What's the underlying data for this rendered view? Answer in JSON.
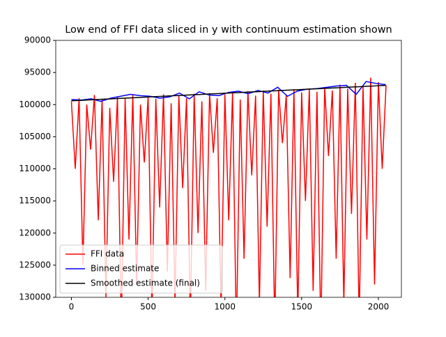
{
  "chart_data": {
    "type": "line",
    "title": "Low end of FFI data sliced in y with continuum estimation shown",
    "xlim": [
      -102,
      2150
    ],
    "xticks": [
      0,
      500,
      1000,
      1500,
      2000
    ],
    "ylim": [
      130000,
      90000
    ],
    "yticks": [
      90000,
      95000,
      100000,
      105000,
      110000,
      115000,
      120000,
      125000,
      130000
    ],
    "legend": "lower left",
    "series": [
      {
        "name": "FFI data",
        "color": "#ff0000",
        "x": [
          0,
          25,
          50,
          75,
          100,
          125,
          150,
          175,
          200,
          225,
          250,
          275,
          300,
          325,
          350,
          375,
          400,
          425,
          450,
          475,
          500,
          525,
          550,
          575,
          600,
          625,
          650,
          675,
          700,
          725,
          750,
          775,
          800,
          825,
          850,
          875,
          900,
          925,
          950,
          975,
          1000,
          1025,
          1050,
          1075,
          1100,
          1125,
          1150,
          1175,
          1200,
          1225,
          1250,
          1275,
          1300,
          1325,
          1350,
          1375,
          1400,
          1425,
          1450,
          1475,
          1500,
          1525,
          1550,
          1575,
          1600,
          1625,
          1650,
          1675,
          1700,
          1725,
          1750,
          1775,
          1800,
          1825,
          1850,
          1875,
          1900,
          1925,
          1950,
          1975,
          2000,
          2025,
          2050
        ],
        "values": [
          99500,
          110000,
          99000,
          125000,
          100000,
          107000,
          98500,
          118000,
          99200,
          130000,
          100500,
          112000,
          98800,
          135000,
          99000,
          121000,
          98500,
          128000,
          100000,
          109000,
          98700,
          133000,
          99100,
          116000,
          98400,
          126000,
          99800,
          131000,
          98600,
          113000,
          99000,
          134000,
          98300,
          120000,
          99500,
          129000,
          98200,
          107500,
          99000,
          132000,
          98400,
          118000,
          98000,
          136000,
          99200,
          124000,
          97900,
          111000,
          98600,
          131000,
          97800,
          119000,
          98300,
          135000,
          97700,
          106000,
          98500,
          127000,
          97600,
          133000,
          98100,
          115000,
          97500,
          129000,
          98000,
          136000,
          97300,
          108000,
          97800,
          124000,
          96900,
          131000,
          97500,
          117000,
          96600,
          134000,
          97200,
          121000,
          95800,
          128000,
          96500,
          110000,
          97000
        ]
      },
      {
        "name": "Binned estimate",
        "color": "#0000ff",
        "x": [
          0,
          64,
          128,
          192,
          256,
          320,
          384,
          448,
          512,
          576,
          640,
          704,
          768,
          832,
          896,
          960,
          1024,
          1088,
          1152,
          1216,
          1280,
          1344,
          1408,
          1472,
          1536,
          1600,
          1664,
          1728,
          1792,
          1856,
          1920,
          1984,
          2048
        ],
        "values": [
          99200,
          99300,
          99100,
          99500,
          99000,
          98700,
          98400,
          98600,
          98700,
          99000,
          98800,
          98200,
          99100,
          98000,
          98500,
          98600,
          98100,
          97900,
          98300,
          97800,
          98200,
          97300,
          98700,
          97900,
          97600,
          97500,
          97300,
          97100,
          97000,
          98400,
          96400,
          96700,
          96900
        ]
      },
      {
        "name": "Smoothed estimate (final)",
        "color": "#000000",
        "x": [
          0,
          64,
          128,
          192,
          256,
          320,
          384,
          448,
          512,
          576,
          640,
          704,
          768,
          832,
          896,
          960,
          1024,
          1088,
          1152,
          1216,
          1280,
          1344,
          1408,
          1472,
          1536,
          1600,
          1664,
          1728,
          1792,
          1856,
          1920,
          1984,
          2048
        ],
        "values": [
          99400,
          99330,
          99250,
          99180,
          99100,
          99030,
          98950,
          98880,
          98800,
          98730,
          98650,
          98580,
          98500,
          98430,
          98350,
          98280,
          98200,
          98130,
          98050,
          97980,
          97900,
          97830,
          97750,
          97680,
          97600,
          97530,
          97450,
          97380,
          97300,
          97230,
          97150,
          97080,
          97000
        ]
      }
    ]
  }
}
